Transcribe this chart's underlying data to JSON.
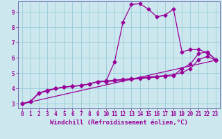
{
  "xlabel": "Windchill (Refroidissement éolien,°C)",
  "bg_color": "#cce8ee",
  "grid_color": "#99ccd9",
  "line_color": "#990099",
  "spine_color": "#6666aa",
  "xlim": [
    -0.5,
    23.5
  ],
  "ylim": [
    2.7,
    9.7
  ],
  "xticks": [
    0,
    1,
    2,
    3,
    4,
    5,
    6,
    7,
    8,
    9,
    10,
    11,
    12,
    13,
    14,
    15,
    16,
    17,
    18,
    19,
    20,
    21,
    22,
    23
  ],
  "yticks": [
    3,
    4,
    5,
    6,
    7,
    8,
    9
  ],
  "line1_x": [
    0,
    1,
    2,
    3,
    4,
    5,
    6,
    7,
    8,
    9,
    10,
    11,
    12,
    13,
    14,
    15,
    16,
    17,
    18,
    19,
    20,
    21,
    22,
    23
  ],
  "line1_y": [
    3.0,
    3.15,
    3.7,
    3.85,
    4.0,
    4.1,
    4.15,
    4.2,
    4.3,
    4.45,
    4.5,
    5.75,
    8.35,
    9.5,
    9.55,
    9.2,
    8.7,
    8.8,
    9.2,
    6.4,
    6.55,
    6.55,
    6.35,
    5.9
  ],
  "line2_x": [
    0,
    1,
    2,
    3,
    4,
    5,
    6,
    7,
    8,
    9,
    10,
    11,
    12,
    13,
    14,
    15,
    16,
    17,
    18,
    19,
    20,
    21,
    22,
    23
  ],
  "line2_y": [
    3.0,
    3.15,
    3.7,
    3.85,
    4.0,
    4.1,
    4.15,
    4.2,
    4.3,
    4.45,
    4.45,
    4.5,
    4.55,
    4.6,
    4.65,
    4.7,
    4.75,
    4.8,
    4.85,
    5.3,
    5.6,
    6.3,
    6.4,
    5.9
  ],
  "line3_x": [
    0,
    1,
    2,
    3,
    4,
    5,
    6,
    7,
    8,
    9,
    10,
    11,
    12,
    13,
    14,
    15,
    16,
    17,
    18,
    19,
    20,
    21,
    22,
    23
  ],
  "line3_y": [
    3.0,
    3.15,
    3.7,
    3.9,
    4.0,
    4.1,
    4.15,
    4.2,
    4.3,
    4.45,
    4.5,
    4.55,
    4.6,
    4.65,
    4.7,
    4.75,
    4.8,
    4.85,
    4.9,
    5.05,
    5.3,
    5.9,
    6.1,
    5.85
  ],
  "line4_x": [
    0,
    23
  ],
  "line4_y": [
    3.0,
    5.85
  ],
  "markersize": 2.5,
  "linewidth": 0.9,
  "tick_fontsize": 5.5,
  "label_fontsize": 6.5
}
